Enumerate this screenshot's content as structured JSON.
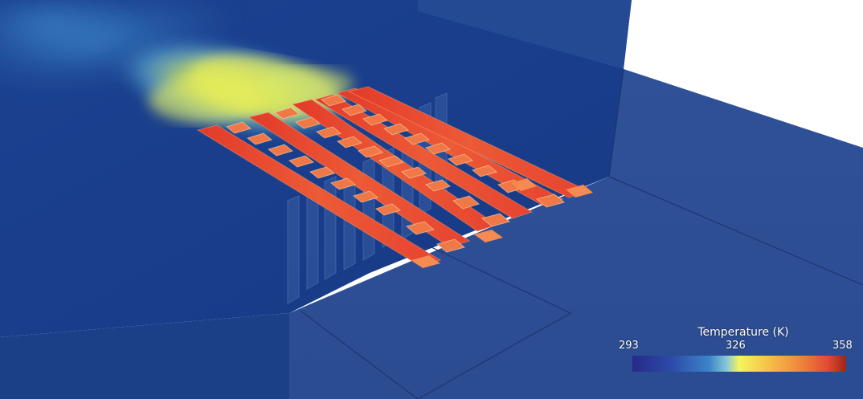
{
  "legend": {
    "title": "Temperature (K)",
    "min": "293",
    "mid": "326",
    "max": "358"
  },
  "colors": {
    "background_wall": "#1a3d8a",
    "floor": "#2f4e94",
    "plume_cool": "#3d84c8",
    "plume_warm": "#e6ee5a",
    "plate_hot": "#e8432f",
    "plate_warm": "#f07a46"
  }
}
